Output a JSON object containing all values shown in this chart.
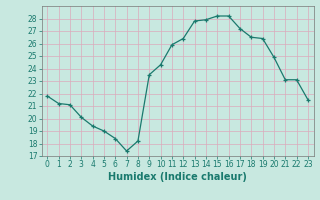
{
  "xlabel": "Humidex (Indice chaleur)",
  "x": [
    0,
    1,
    2,
    3,
    4,
    5,
    6,
    7,
    8,
    9,
    10,
    11,
    12,
    13,
    14,
    15,
    16,
    17,
    18,
    19,
    20,
    21,
    22,
    23
  ],
  "y": [
    21.8,
    21.2,
    21.1,
    20.1,
    19.4,
    19.0,
    18.4,
    17.4,
    18.2,
    23.5,
    24.3,
    25.9,
    26.4,
    27.8,
    27.9,
    28.2,
    28.2,
    27.2,
    26.5,
    26.4,
    24.9,
    23.1,
    23.1,
    21.5
  ],
  "line_color": "#1a7a6e",
  "bg_color": "#c8e8e0",
  "grid_color_v": "#dbaabb",
  "grid_color_h": "#dbaabb",
  "ylim": [
    17,
    29
  ],
  "xlim": [
    -0.5,
    23.5
  ],
  "yticks": [
    17,
    18,
    19,
    20,
    21,
    22,
    23,
    24,
    25,
    26,
    27,
    28
  ],
  "xticks": [
    0,
    1,
    2,
    3,
    4,
    5,
    6,
    7,
    8,
    9,
    10,
    11,
    12,
    13,
    14,
    15,
    16,
    17,
    18,
    19,
    20,
    21,
    22,
    23
  ],
  "tick_fontsize": 5.5,
  "xlabel_fontsize": 7.0
}
